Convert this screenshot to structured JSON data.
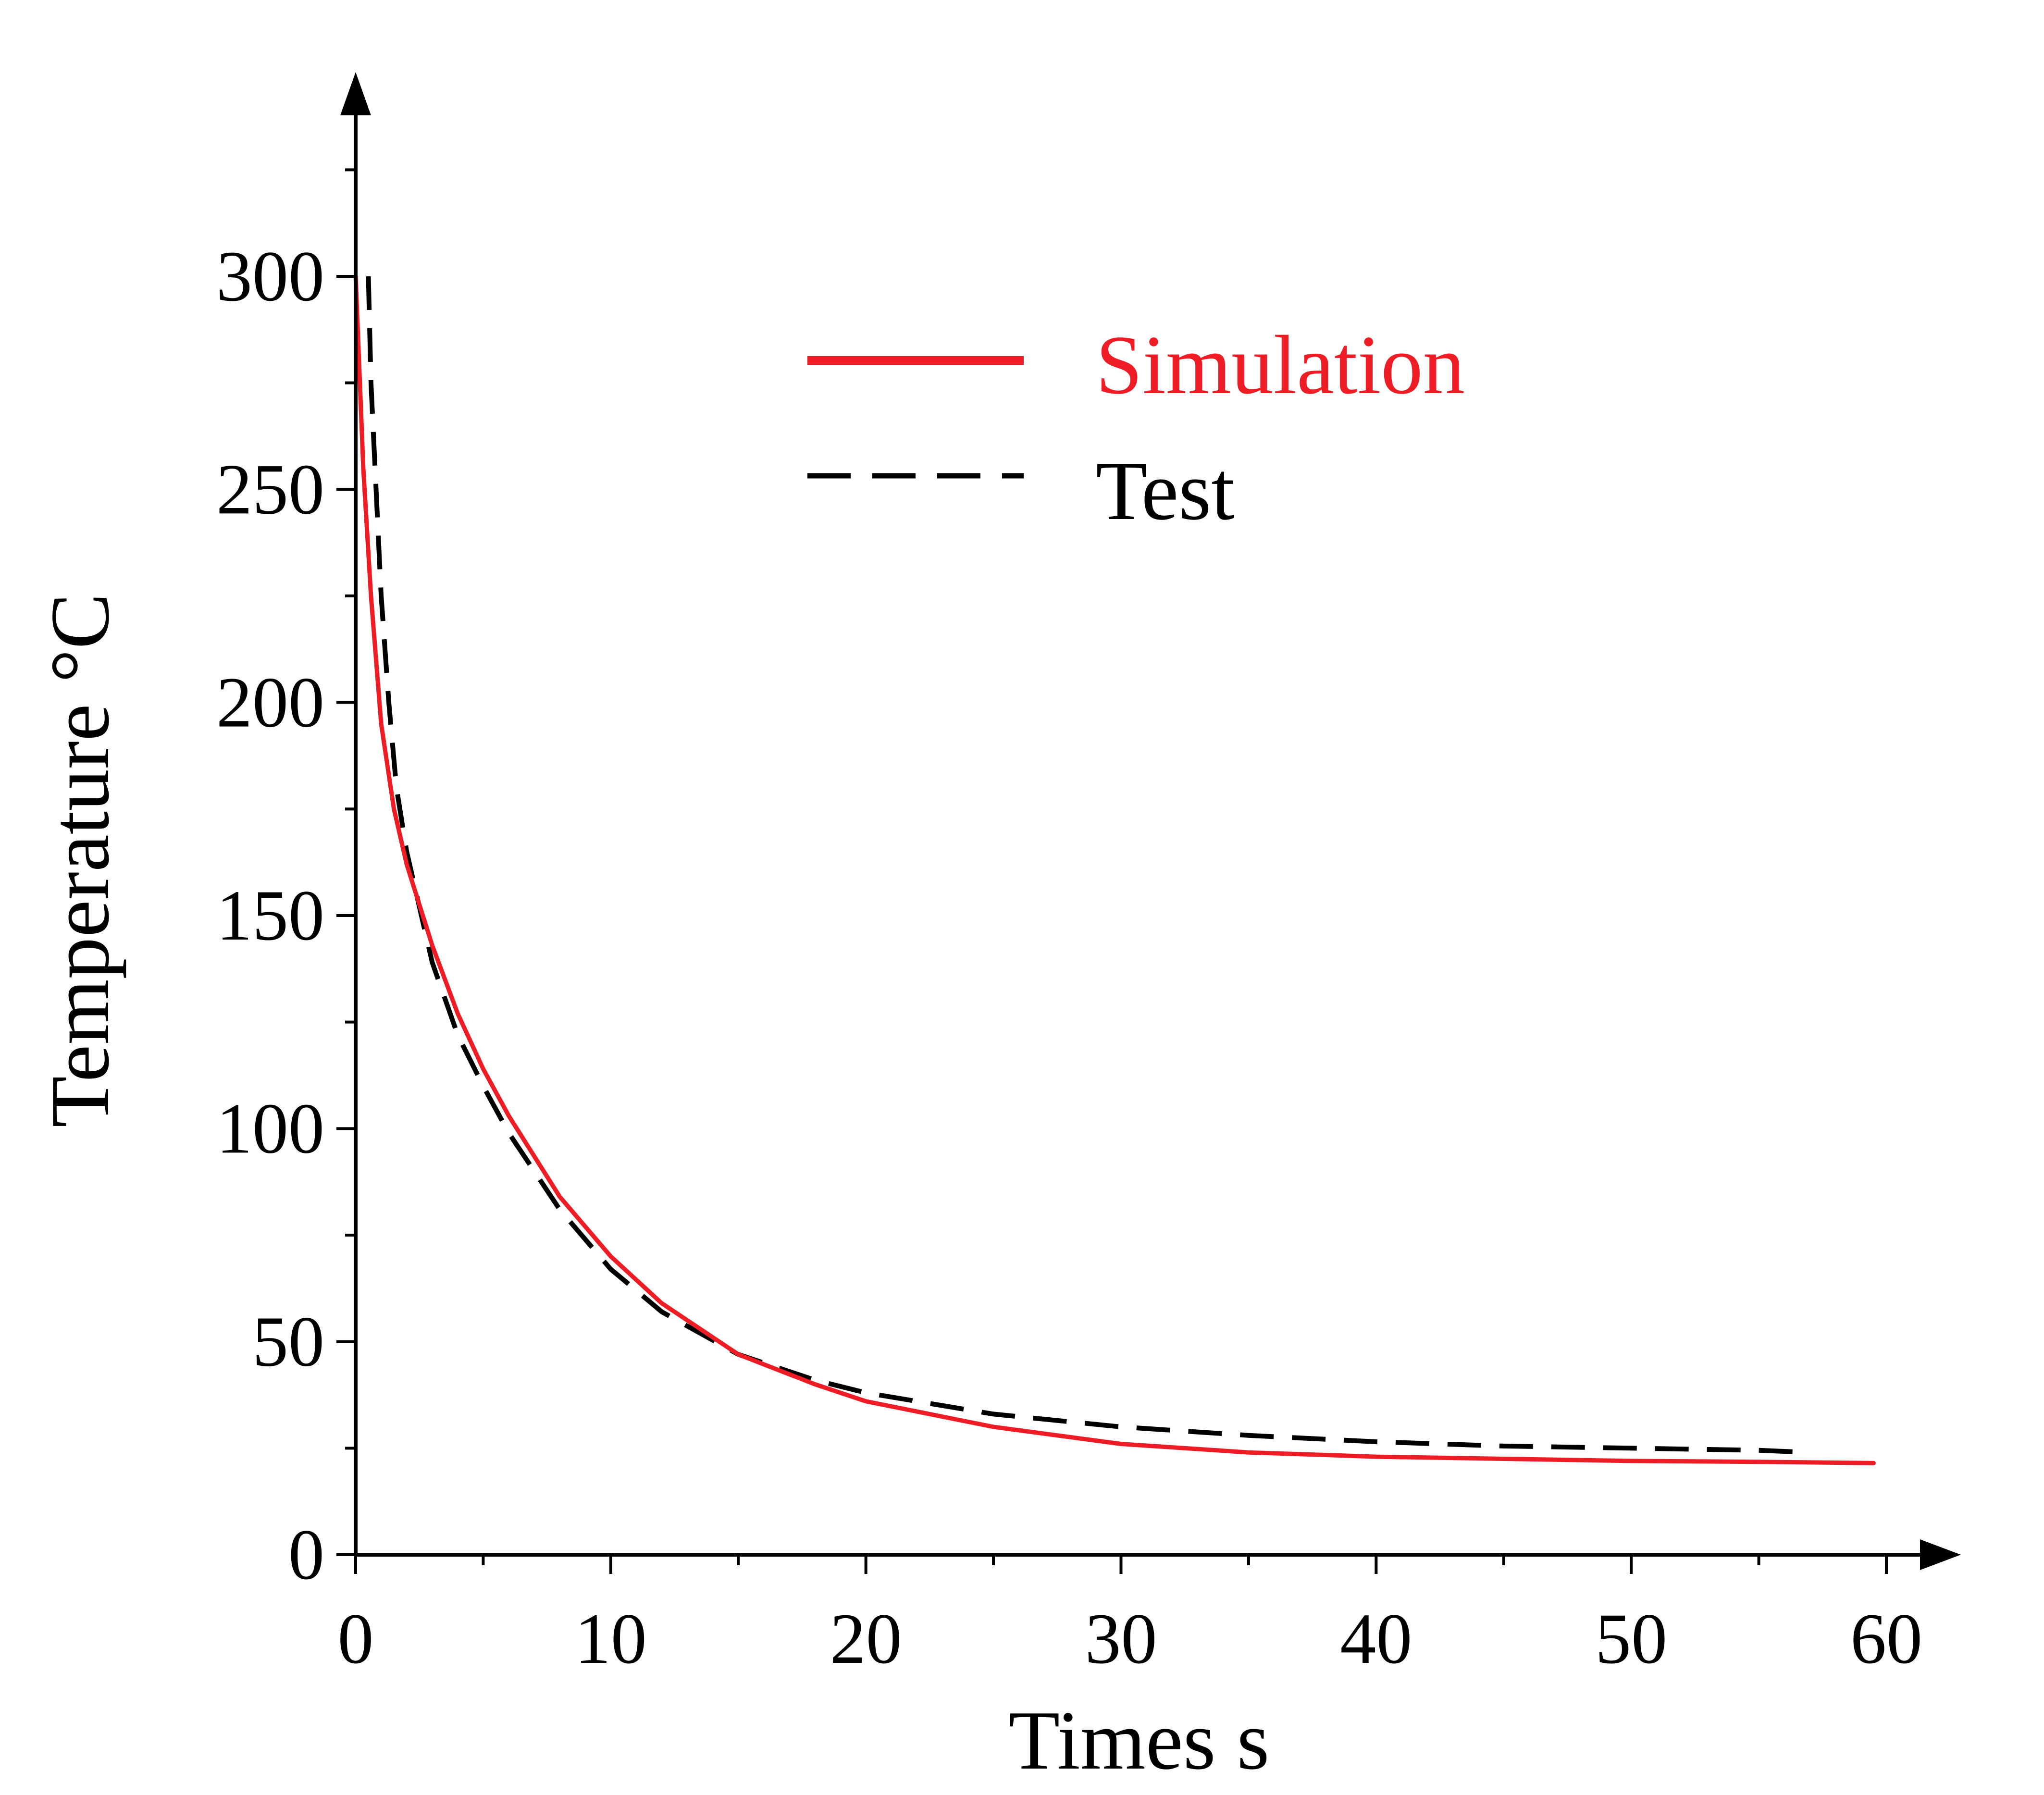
{
  "chart_data": {
    "type": "line",
    "title": "",
    "xlabel": "Times s",
    "ylabel": "Temperature °C",
    "xlim": [
      0,
      64
    ],
    "ylim": [
      0,
      340
    ],
    "xticks": [
      0,
      10,
      20,
      30,
      40,
      50,
      60
    ],
    "yticks": [
      0,
      50,
      100,
      150,
      200,
      250,
      300
    ],
    "xtick_labels": [
      "0",
      "10",
      "20",
      "30",
      "40",
      "50",
      "60"
    ],
    "ytick_labels": [
      "0",
      "50",
      "100",
      "150",
      "200",
      "250",
      "300"
    ],
    "grid": false,
    "legend_position": "top-center",
    "series": [
      {
        "name": "Simulation",
        "color": "#ee1c25",
        "style": "solid",
        "x": [
          0,
          0.3,
          0.6,
          1,
          1.5,
          2,
          3,
          4,
          5,
          6,
          8,
          10,
          12,
          15,
          18,
          20,
          25,
          30,
          35,
          40,
          45,
          50,
          55,
          59.5
        ],
        "y": [
          300,
          255,
          225,
          195,
          175,
          162,
          143,
          127,
          114,
          103,
          84,
          70,
          59,
          47,
          40,
          36,
          30,
          26,
          24,
          23,
          22.5,
          22,
          21.8,
          21.5
        ]
      },
      {
        "name": "Test",
        "color": "#000000",
        "style": "dashed",
        "x": [
          0.5,
          0.6,
          0.8,
          1,
          1.3,
          1.6,
          2,
          2.5,
          3,
          4,
          5,
          6,
          8,
          10,
          12,
          15,
          18,
          20,
          25,
          30,
          35,
          40,
          45,
          50,
          55,
          57
        ],
        "y": [
          300,
          275,
          250,
          225,
          200,
          180,
          165,
          152,
          139,
          122,
          110,
          99,
          81,
          67,
          57,
          47,
          41,
          38,
          33,
          30,
          28,
          26.5,
          25.5,
          25,
          24.5,
          24
        ]
      }
    ]
  }
}
